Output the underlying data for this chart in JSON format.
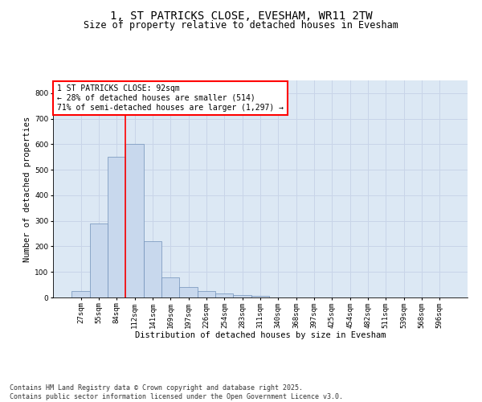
{
  "title": "1, ST PATRICKS CLOSE, EVESHAM, WR11 2TW",
  "subtitle": "Size of property relative to detached houses in Evesham",
  "xlabel": "Distribution of detached houses by size in Evesham",
  "ylabel": "Number of detached properties",
  "categories": [
    "27sqm",
    "55sqm",
    "84sqm",
    "112sqm",
    "141sqm",
    "169sqm",
    "197sqm",
    "226sqm",
    "254sqm",
    "283sqm",
    "311sqm",
    "340sqm",
    "368sqm",
    "397sqm",
    "425sqm",
    "454sqm",
    "482sqm",
    "511sqm",
    "539sqm",
    "568sqm",
    "596sqm"
  ],
  "bar_heights": [
    25,
    290,
    550,
    600,
    220,
    80,
    40,
    25,
    15,
    10,
    5,
    0,
    0,
    0,
    0,
    0,
    0,
    0,
    0,
    0,
    0
  ],
  "bar_color": "#c8d8ed",
  "bar_edge_color": "#7090b8",
  "vline_color": "red",
  "vline_pos": 2.5,
  "annotation_text": "1 ST PATRICKS CLOSE: 92sqm\n← 28% of detached houses are smaller (514)\n71% of semi-detached houses are larger (1,297) →",
  "annotation_box_color": "white",
  "annotation_box_edge_color": "red",
  "ylim": [
    0,
    850
  ],
  "yticks": [
    0,
    100,
    200,
    300,
    400,
    500,
    600,
    700,
    800
  ],
  "grid_color": "#c8d4e8",
  "background_color": "#dce8f4",
  "footer_text": "Contains HM Land Registry data © Crown copyright and database right 2025.\nContains public sector information licensed under the Open Government Licence v3.0.",
  "title_fontsize": 10,
  "subtitle_fontsize": 8.5,
  "axis_label_fontsize": 7.5,
  "tick_fontsize": 6.5,
  "annotation_fontsize": 7,
  "footer_fontsize": 6
}
